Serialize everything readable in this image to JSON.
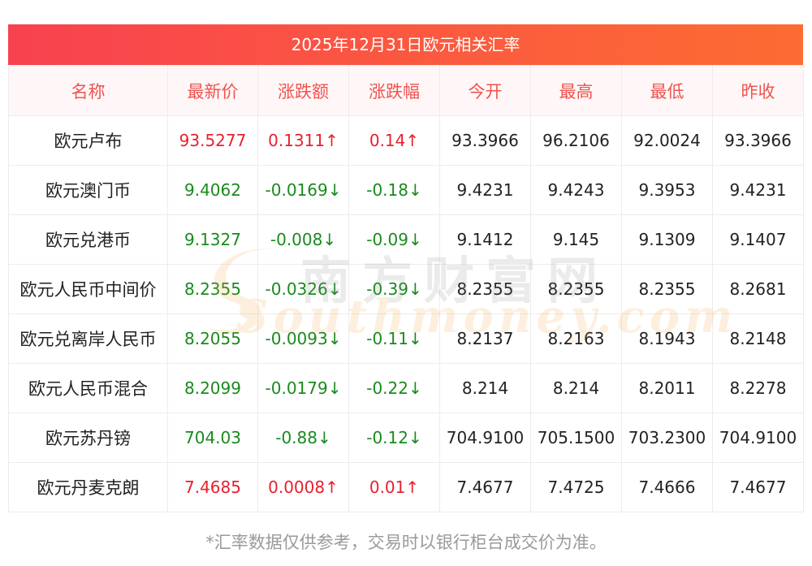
{
  "title": "2025年12月31日欧元相关汇率",
  "headers": [
    "名称",
    "最新价",
    "涨跌额",
    "涨跌幅",
    "今开",
    "最高",
    "最低",
    "昨收"
  ],
  "rows": [
    {
      "name": "欧元卢布",
      "latest": "93.5277",
      "change": "0.1311↑",
      "pct": "0.14↑",
      "open": "93.3966",
      "high": "96.2106",
      "low": "92.0024",
      "prev": "93.3966",
      "dir": "up"
    },
    {
      "name": "欧元澳门币",
      "latest": "9.4062",
      "change": "-0.0169↓",
      "pct": "-0.18↓",
      "open": "9.4231",
      "high": "9.4243",
      "low": "9.3953",
      "prev": "9.4231",
      "dir": "down"
    },
    {
      "name": "欧元兑港币",
      "latest": "9.1327",
      "change": "-0.008↓",
      "pct": "-0.09↓",
      "open": "9.1412",
      "high": "9.145",
      "low": "9.1309",
      "prev": "9.1407",
      "dir": "down"
    },
    {
      "name": "欧元人民币中间价",
      "latest": "8.2355",
      "change": "-0.0326↓",
      "pct": "-0.39↓",
      "open": "8.2355",
      "high": "8.2355",
      "low": "8.2355",
      "prev": "8.2681",
      "dir": "down"
    },
    {
      "name": "欧元兑离岸人民币",
      "latest": "8.2055",
      "change": "-0.0093↓",
      "pct": "-0.11↓",
      "open": "8.2137",
      "high": "8.2163",
      "low": "8.1943",
      "prev": "8.2148",
      "dir": "down"
    },
    {
      "name": "欧元人民币混合",
      "latest": "8.2099",
      "change": "-0.0179↓",
      "pct": "-0.22↓",
      "open": "8.214",
      "high": "8.214",
      "low": "8.2011",
      "prev": "8.2278",
      "dir": "down"
    },
    {
      "name": "欧元苏丹镑",
      "latest": "704.03",
      "change": "-0.88↓",
      "pct": "-0.12↓",
      "open": "704.9100",
      "high": "705.1500",
      "low": "703.2300",
      "prev": "704.9100",
      "dir": "down"
    },
    {
      "name": "欧元丹麦克朗",
      "latest": "7.4685",
      "change": "0.0008↑",
      "pct": "0.01↑",
      "open": "7.4677",
      "high": "7.4725",
      "low": "7.4666",
      "prev": "7.4677",
      "dir": "up"
    }
  ],
  "footnote": "*汇率数据仅供参考，交易时以银行柜台成交价为准。",
  "watermark": {
    "cn": "南方财富网",
    "en": "Southmoney.com"
  },
  "colors": {
    "up": "#e8202e",
    "down": "#1a8a1e",
    "header_text": "#ef5350",
    "title_gradient_start": "#f8424f",
    "title_gradient_end": "#fc6c32"
  }
}
